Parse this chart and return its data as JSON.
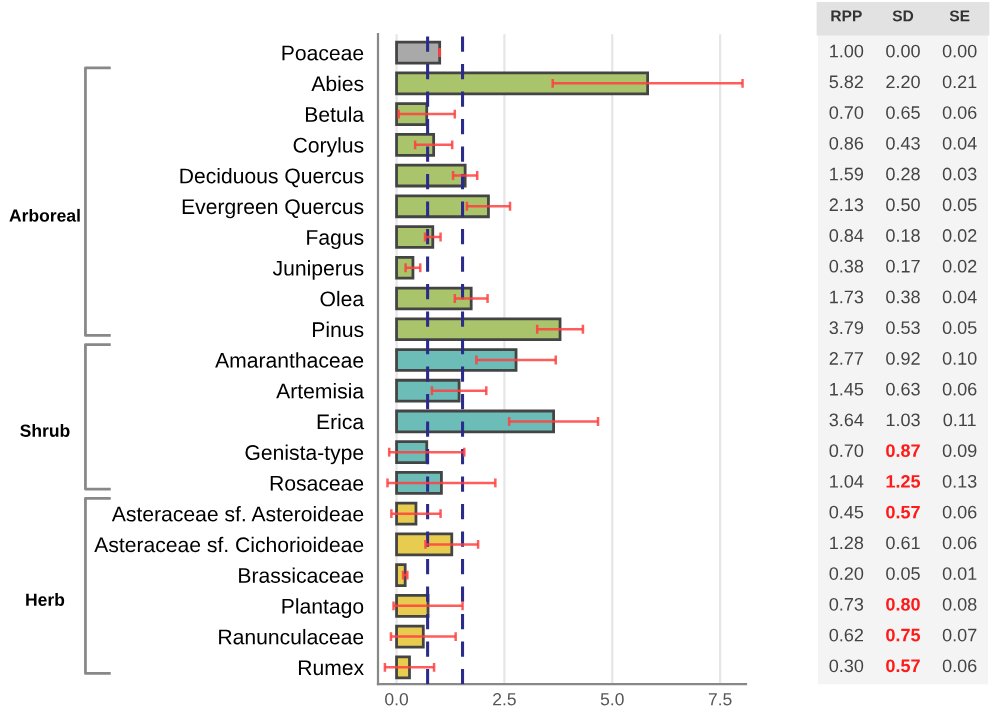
{
  "chart_data": [
    {
      "type": "bar",
      "orientation": "horizontal",
      "categories": [
        "Poaceae",
        "Abies",
        "Betula",
        "Corylus",
        "Deciduous Quercus",
        "Evergreen Quercus",
        "Fagus",
        "Juniperus",
        "Olea",
        "Pinus",
        "Amaranthaceae",
        "Artemisia",
        "Erica",
        "Genista-type",
        "Rosaceae",
        "Asteraceae sf. Asteroideae",
        "Asteraceae sf. Cichorioideae",
        "Brassicaceae",
        "Plantago",
        "Ranunculaceae",
        "Rumex"
      ],
      "values": [
        1.0,
        5.82,
        0.7,
        0.86,
        1.59,
        2.13,
        0.84,
        0.38,
        1.73,
        3.79,
        2.77,
        1.45,
        3.64,
        0.7,
        1.04,
        0.45,
        1.28,
        0.2,
        0.73,
        0.62,
        0.3
      ],
      "errors": [
        0.0,
        2.2,
        0.65,
        0.43,
        0.28,
        0.5,
        0.18,
        0.17,
        0.38,
        0.53,
        0.92,
        0.63,
        1.03,
        0.87,
        1.25,
        0.57,
        0.61,
        0.05,
        0.8,
        0.75,
        0.57
      ],
      "colors": [
        "#a9a9a9",
        "#a9c46a",
        "#a9c46a",
        "#a9c46a",
        "#a9c46a",
        "#a9c46a",
        "#a9c46a",
        "#a9c46a",
        "#a9c46a",
        "#a9c46a",
        "#6cbcb8",
        "#6cbcb8",
        "#6cbcb8",
        "#6cbcb8",
        "#6cbcb8",
        "#e8cc50",
        "#e8cc50",
        "#e8cc50",
        "#e8cc50",
        "#e8cc50",
        "#e8cc50"
      ],
      "xlim": [
        -0.43,
        8.1
      ],
      "xticks": [
        {
          "value": 0,
          "label": "0.0"
        },
        {
          "value": 2.5,
          "label": "2.5"
        },
        {
          "value": 5,
          "label": "5.0"
        },
        {
          "value": 7.5,
          "label": "7.5"
        }
      ],
      "grid": "x",
      "ref_lines": [
        {
          "axis": "x",
          "value": 0.72,
          "color": "#2b2b8c",
          "line_style": "dashed"
        },
        {
          "axis": "x",
          "value": 1.53,
          "color": "#2b2b8c",
          "line_style": "dashed"
        }
      ],
      "annotations": [
        "Arboreal",
        "Shrub",
        "Herb"
      ]
    },
    {
      "type": "other",
      "categories": [
        "RPP",
        "SD",
        "SE"
      ],
      "cell_labels": [
        [
          "1.00",
          "0.00",
          "0.00"
        ],
        [
          "5.82",
          "2.20",
          "0.21"
        ],
        [
          "0.70",
          "0.65",
          "0.06"
        ],
        [
          "0.86",
          "0.43",
          "0.04"
        ],
        [
          "1.59",
          "0.28",
          "0.03"
        ],
        [
          "2.13",
          "0.50",
          "0.05"
        ],
        [
          "0.84",
          "0.18",
          "0.02"
        ],
        [
          "0.38",
          "0.17",
          "0.02"
        ],
        [
          "1.73",
          "0.38",
          "0.04"
        ],
        [
          "3.79",
          "0.53",
          "0.05"
        ],
        [
          "2.77",
          "0.92",
          "0.10"
        ],
        [
          "1.45",
          "0.63",
          "0.06"
        ],
        [
          "3.64",
          "1.03",
          "0.11"
        ],
        [
          "0.70",
          "0.87",
          "0.09"
        ],
        [
          "1.04",
          "1.25",
          "0.13"
        ],
        [
          "0.45",
          "0.57",
          "0.06"
        ],
        [
          "1.28",
          "0.61",
          "0.06"
        ],
        [
          "0.20",
          "0.05",
          "0.01"
        ],
        [
          "0.73",
          "0.80",
          "0.08"
        ],
        [
          "0.62",
          "0.75",
          "0.07"
        ],
        [
          "0.30",
          "0.57",
          "0.06"
        ]
      ]
    }
  ]
}
